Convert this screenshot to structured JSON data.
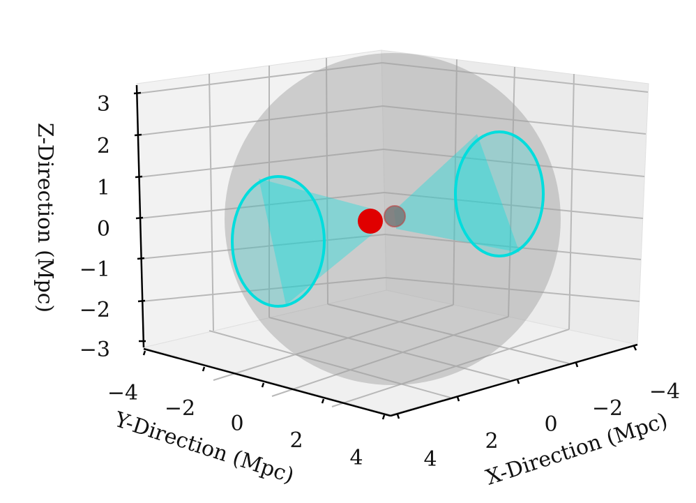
{
  "chart_data": {
    "type": "3d-scatter",
    "axes": {
      "x": {
        "label": "X-Direction (Mpc)",
        "ticks": [
          "−4",
          "−2",
          "0",
          "2",
          "4"
        ],
        "range": [
          -4,
          4
        ]
      },
      "y": {
        "label": "Y-Direction (Mpc)",
        "ticks": [
          "−4",
          "−2",
          "0",
          "2",
          "4"
        ],
        "range": [
          -4,
          4
        ]
      },
      "z": {
        "label": "Z-Direction (Mpc)",
        "ticks": [
          "3",
          "2",
          "1",
          "0",
          "−1",
          "−2",
          "−3"
        ],
        "range": [
          -3,
          3
        ]
      }
    },
    "grid": true,
    "sphere": {
      "radius": 4,
      "color": "#c8c8c8"
    },
    "cones": {
      "color": "#00e0e0",
      "apex": [
        0,
        0,
        0
      ],
      "length": 4,
      "end_radius": 1.6
    },
    "points": [
      {
        "color": "#e00000",
        "position": [
          0,
          0,
          0
        ]
      },
      {
        "color": "#777777",
        "position": [
          0,
          0,
          0
        ]
      }
    ]
  }
}
